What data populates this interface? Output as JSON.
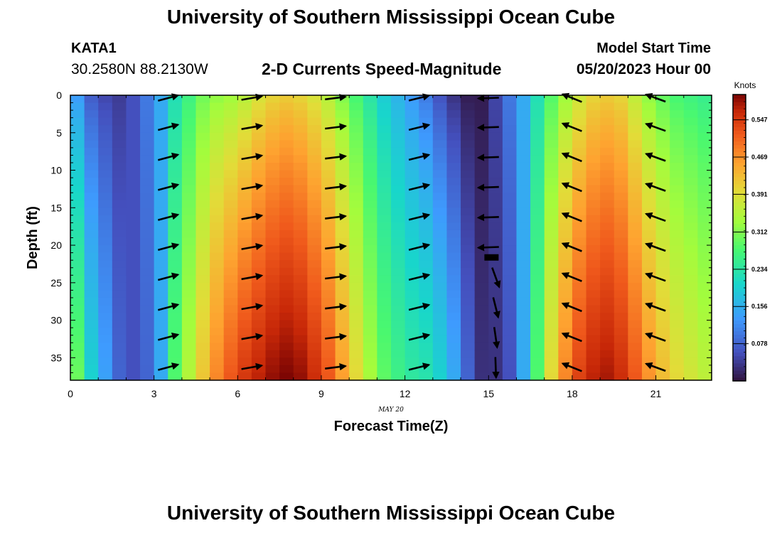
{
  "header": {
    "title": "University of Southern Mississippi Ocean Cube",
    "station": "KATA1",
    "coords": "30.2580N  88.2130W",
    "subtitle": "2-D Currents Speed-Magnitude",
    "model_label": "Model Start Time",
    "model_date": "05/20/2023 Hour 00",
    "footer_title": "University of Southern Mississippi Ocean Cube"
  },
  "chart_data": {
    "type": "heatmap",
    "title": "2-D Currents Speed-Magnitude",
    "xlabel": "Forecast Time(Z)",
    "ylabel": "Depth (ft)",
    "date_label": "MAY 20",
    "xlim": [
      0,
      23
    ],
    "ylim": [
      0,
      38
    ],
    "xticks": [
      0,
      3,
      6,
      9,
      12,
      15,
      18,
      21
    ],
    "yticks": [
      0,
      5,
      10,
      15,
      20,
      25,
      30,
      35
    ],
    "time_hours": [
      0.5,
      1.0,
      1.5,
      2.0,
      2.5,
      3.0,
      3.5,
      4.0,
      4.5,
      5.0,
      5.5,
      6.0,
      6.5,
      7.0,
      7.5,
      8.0,
      8.5,
      9.0,
      9.5,
      10.0,
      10.5,
      11.0,
      11.5,
      12.0,
      12.5,
      13.0,
      13.5,
      14.0,
      14.5,
      15.0,
      15.5,
      16.0,
      16.5,
      17.0,
      17.5,
      18.0,
      18.5,
      19.0,
      19.5,
      20.0,
      20.5,
      21.0,
      21.5,
      22.0,
      22.5,
      23.0
    ],
    "surface_speed_knots": [
      0.13,
      0.07,
      0.05,
      0.04,
      0.06,
      0.1,
      0.15,
      0.22,
      0.26,
      0.3,
      0.32,
      0.33,
      0.35,
      0.38,
      0.4,
      0.41,
      0.4,
      0.38,
      0.35,
      0.31,
      0.27,
      0.23,
      0.19,
      0.16,
      0.13,
      0.1,
      0.06,
      0.03,
      0.01,
      0.01,
      0.05,
      0.1,
      0.15,
      0.22,
      0.28,
      0.33,
      0.37,
      0.4,
      0.41,
      0.4,
      0.36,
      0.32,
      0.29,
      0.27,
      0.26,
      0.25
    ],
    "bottom_speed_knots": [
      0.3,
      0.2,
      0.14,
      0.08,
      0.06,
      0.08,
      0.15,
      0.28,
      0.35,
      0.42,
      0.48,
      0.52,
      0.55,
      0.57,
      0.59,
      0.6,
      0.59,
      0.56,
      0.52,
      0.46,
      0.4,
      0.34,
      0.29,
      0.26,
      0.24,
      0.23,
      0.2,
      0.15,
      0.08,
      0.03,
      0.03,
      0.06,
      0.15,
      0.28,
      0.4,
      0.48,
      0.54,
      0.57,
      0.58,
      0.56,
      0.52,
      0.47,
      0.43,
      0.4,
      0.38,
      0.36
    ],
    "arrow_times": [
      3.5,
      6.5,
      9.5,
      12.5,
      15.0,
      18.0,
      21.0
    ],
    "arrow_depths_ft": [
      0,
      4,
      8,
      12,
      16,
      20,
      24,
      28,
      32,
      36
    ],
    "arrow_direction_deg_math": [
      15,
      10,
      7,
      14,
      -178,
      -202,
      -200
    ],
    "colorbar": {
      "label": "Knots",
      "min": 0.0,
      "max": 0.6,
      "tick_values": [
        0.078,
        0.156,
        0.234,
        0.312,
        0.391,
        0.469,
        0.547
      ],
      "tick_labels": [
        "0.078",
        "0.156",
        "0.234",
        "0.312",
        "0.391",
        "0.469",
        "0.547"
      ]
    }
  }
}
